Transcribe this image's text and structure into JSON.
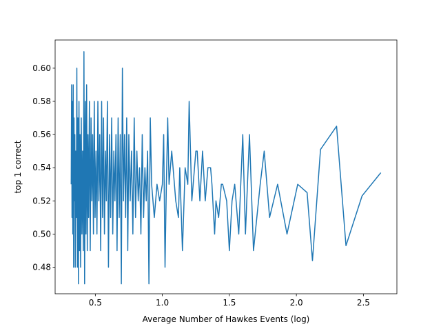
{
  "chart_data": {
    "type": "line",
    "xlabel": "Average Number of Hawkes Events (log)",
    "ylabel": "top 1 correct",
    "xlim": [
      0.2,
      2.75
    ],
    "ylim": [
      0.464,
      0.617
    ],
    "xticks": [
      0.5,
      {
        "value": 1.0,
        "label": "1.0"
      },
      1.5,
      {
        "value": 2.0,
        "label": "2.0"
      },
      2.5
    ],
    "yticks": [
      0.48,
      {
        "value": 0.5,
        "label": "0.50"
      },
      0.52,
      0.54,
      0.56,
      0.58,
      {
        "value": 0.6,
        "label": "0.60"
      }
    ],
    "series": [
      {
        "color": "#1f77b4",
        "x": [
          0.32,
          0.323,
          0.326,
          0.329,
          0.332,
          0.335,
          0.338,
          0.341,
          0.344,
          0.347,
          0.35,
          0.354,
          0.358,
          0.362,
          0.366,
          0.37,
          0.374,
          0.378,
          0.382,
          0.386,
          0.39,
          0.395,
          0.4,
          0.405,
          0.41,
          0.415,
          0.42,
          0.425,
          0.43,
          0.435,
          0.44,
          0.445,
          0.45,
          0.456,
          0.462,
          0.468,
          0.474,
          0.48,
          0.486,
          0.492,
          0.498,
          0.505,
          0.512,
          0.519,
          0.526,
          0.533,
          0.54,
          0.547,
          0.554,
          0.561,
          0.568,
          0.575,
          0.582,
          0.59,
          0.598,
          0.606,
          0.614,
          0.622,
          0.63,
          0.638,
          0.646,
          0.654,
          0.662,
          0.67,
          0.678,
          0.686,
          0.694,
          0.702,
          0.71,
          0.718,
          0.726,
          0.734,
          0.742,
          0.75,
          0.76,
          0.77,
          0.78,
          0.79,
          0.8,
          0.81,
          0.82,
          0.83,
          0.84,
          0.85,
          0.86,
          0.87,
          0.88,
          0.89,
          0.9,
          0.91,
          0.92,
          0.94,
          0.96,
          0.98,
          1.0,
          1.01,
          1.02,
          1.03,
          1.04,
          1.05,
          1.07,
          1.08,
          1.1,
          1.12,
          1.13,
          1.15,
          1.17,
          1.19,
          1.2,
          1.22,
          1.23,
          1.25,
          1.26,
          1.28,
          1.3,
          1.32,
          1.34,
          1.36,
          1.37,
          1.39,
          1.4,
          1.42,
          1.44,
          1.45,
          1.48,
          1.5,
          1.52,
          1.54,
          1.57,
          1.6,
          1.62,
          1.65,
          1.68,
          1.73,
          1.76,
          1.8,
          1.86,
          1.93,
          2.01,
          2.08,
          2.12,
          2.18,
          2.3,
          2.37,
          2.49,
          2.63
        ],
        "values": [
          0.53,
          0.59,
          0.51,
          0.58,
          0.5,
          0.59,
          0.48,
          0.57,
          0.52,
          0.56,
          0.48,
          0.55,
          0.51,
          0.6,
          0.48,
          0.57,
          0.47,
          0.58,
          0.49,
          0.56,
          0.48,
          0.57,
          0.5,
          0.55,
          0.49,
          0.61,
          0.47,
          0.58,
          0.5,
          0.59,
          0.49,
          0.56,
          0.51,
          0.58,
          0.49,
          0.57,
          0.52,
          0.56,
          0.5,
          0.58,
          0.51,
          0.55,
          0.5,
          0.58,
          0.52,
          0.56,
          0.49,
          0.58,
          0.51,
          0.57,
          0.5,
          0.55,
          0.52,
          0.58,
          0.48,
          0.56,
          0.51,
          0.57,
          0.5,
          0.55,
          0.52,
          0.56,
          0.49,
          0.57,
          0.51,
          0.56,
          0.47,
          0.6,
          0.52,
          0.56,
          0.51,
          0.57,
          0.49,
          0.56,
          0.52,
          0.55,
          0.5,
          0.57,
          0.51,
          0.55,
          0.52,
          0.54,
          0.5,
          0.56,
          0.51,
          0.54,
          0.52,
          0.55,
          0.47,
          0.57,
          0.53,
          0.51,
          0.53,
          0.52,
          0.53,
          0.56,
          0.48,
          0.53,
          0.57,
          0.53,
          0.55,
          0.54,
          0.52,
          0.51,
          0.54,
          0.49,
          0.54,
          0.53,
          0.58,
          0.52,
          0.53,
          0.55,
          0.55,
          0.52,
          0.55,
          0.52,
          0.54,
          0.54,
          0.53,
          0.5,
          0.52,
          0.51,
          0.53,
          0.53,
          0.52,
          0.49,
          0.52,
          0.53,
          0.5,
          0.56,
          0.5,
          0.56,
          0.49,
          0.53,
          0.55,
          0.51,
          0.53,
          0.5,
          0.53,
          0.525,
          0.484,
          0.551,
          0.565,
          0.493,
          0.523,
          0.537
        ]
      }
    ]
  }
}
